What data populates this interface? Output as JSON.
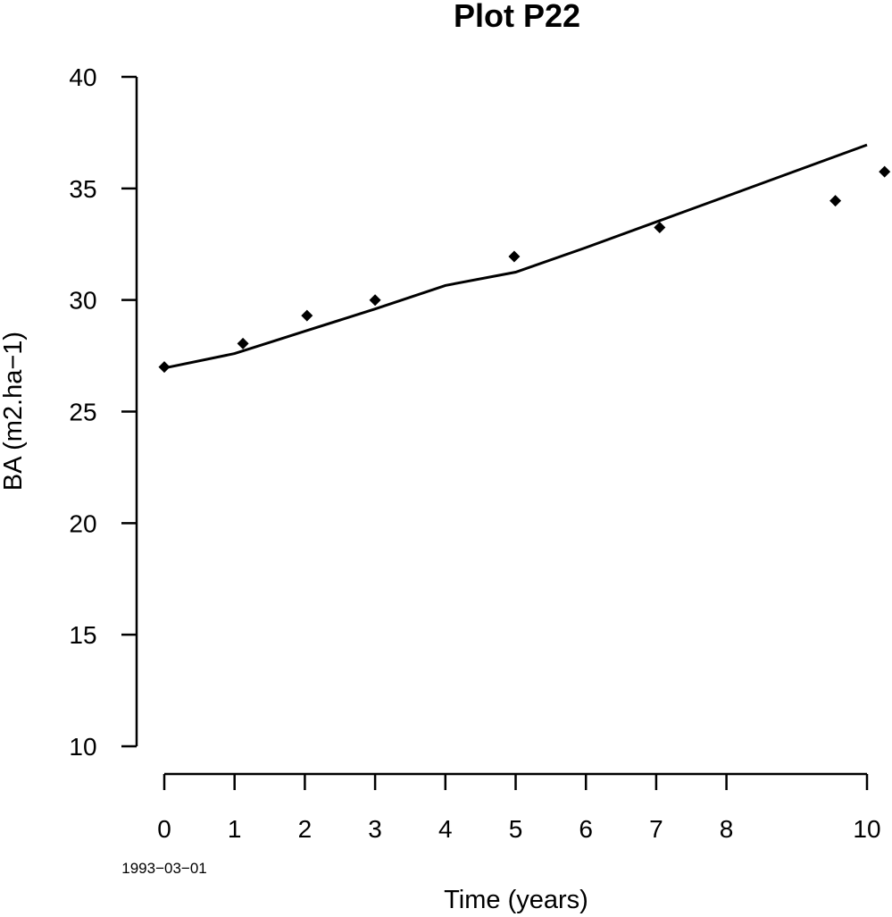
{
  "chart_data": {
    "type": "scatter",
    "title": "Plot P22",
    "xlabel": "Time (years)",
    "ylabel": "BA (m2.ha−1)",
    "start_date_label": "1993−03−01",
    "xlim": [
      0,
      10
    ],
    "ylim": [
      10,
      40
    ],
    "x_ticks": [
      0,
      1,
      2,
      3,
      4,
      5,
      6,
      7,
      8,
      10
    ],
    "x_tick_labels": [
      "0",
      "1",
      "2",
      "3",
      "4",
      "5",
      "6",
      "7",
      "8",
      "10"
    ],
    "y_ticks": [
      10,
      15,
      20,
      25,
      30,
      35,
      40
    ],
    "y_tick_labels": [
      "10",
      "15",
      "20",
      "25",
      "30",
      "35",
      "40"
    ],
    "grid": false,
    "series": [
      {
        "type": "scatter",
        "marker": "diamond",
        "points": [
          {
            "x": 0.0,
            "y": 27.0
          },
          {
            "x": 1.12,
            "y": 28.05
          },
          {
            "x": 2.03,
            "y": 29.3
          },
          {
            "x": 3.0,
            "y": 30.0
          },
          {
            "x": 4.98,
            "y": 31.95
          },
          {
            "x": 7.05,
            "y": 33.25
          },
          {
            "x": 9.55,
            "y": 34.45
          },
          {
            "x": 10.25,
            "y": 35.75
          }
        ]
      },
      {
        "type": "line",
        "points": [
          {
            "x": 0.0,
            "y": 26.95
          },
          {
            "x": 1.0,
            "y": 27.6
          },
          {
            "x": 2.0,
            "y": 28.6
          },
          {
            "x": 3.0,
            "y": 29.6
          },
          {
            "x": 4.0,
            "y": 30.65
          },
          {
            "x": 5.0,
            "y": 31.25
          },
          {
            "x": 6.0,
            "y": 32.35
          },
          {
            "x": 7.0,
            "y": 33.5
          },
          {
            "x": 8.0,
            "y": 34.65
          },
          {
            "x": 10.0,
            "y": 36.95
          }
        ]
      }
    ]
  }
}
